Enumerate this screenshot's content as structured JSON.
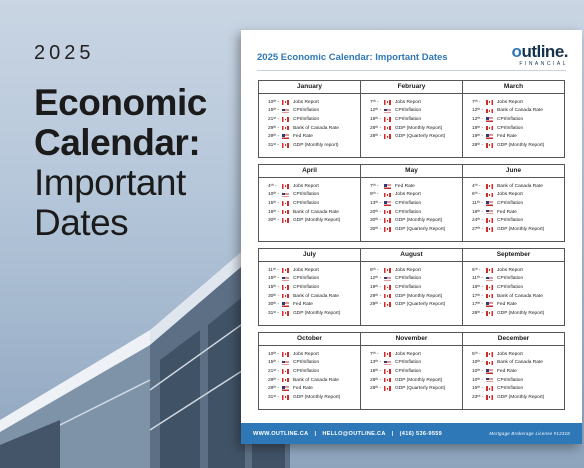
{
  "hero": {
    "year": "2025",
    "line1": "Economic",
    "line2": "Calendar:",
    "line3": "Important",
    "line4": "Dates"
  },
  "doc": {
    "title": "2025 Economic Calendar: Important Dates",
    "logo": {
      "main_prefix": "",
      "main_o": "o",
      "main_rest": "utline.",
      "sub": "FINANCIAL"
    }
  },
  "months": [
    {
      "name": "January",
      "events": [
        {
          "date": "10ᵗʰ -",
          "flag": "ca",
          "label": "Jobs Report"
        },
        {
          "date": "15ᵗʰ -",
          "flag": "us",
          "label": "CPI/Inflation"
        },
        {
          "date": "21ˢᵗ -",
          "flag": "ca",
          "label": "CPI/Inflation"
        },
        {
          "date": "29ᵗʰ -",
          "flag": "ca",
          "label": "Bank of Canada Rate"
        },
        {
          "date": "29ᵗʰ -",
          "flag": "us",
          "label": "Fed Rate"
        },
        {
          "date": "31ˢᵗ -",
          "flag": "ca",
          "label": "GDP (Monthly report)"
        }
      ]
    },
    {
      "name": "February",
      "events": [
        {
          "date": "7ᵗʰ -",
          "flag": "ca",
          "label": "Jobs Report"
        },
        {
          "date": "12ᵗʰ -",
          "flag": "us",
          "label": "CPI/Inflation"
        },
        {
          "date": "18ᵗʰ -",
          "flag": "ca",
          "label": "CPI/Inflation"
        },
        {
          "date": "28ᵗʰ -",
          "flag": "ca",
          "label": "GDP (Monthly Report)"
        },
        {
          "date": "28ᵗʰ -",
          "flag": "ca",
          "label": "GDP (Quarterly Report)"
        }
      ]
    },
    {
      "name": "March",
      "events": [
        {
          "date": "7ᵗʰ -",
          "flag": "ca",
          "label": "Jobs Report"
        },
        {
          "date": "12ᵗʰ -",
          "flag": "ca",
          "label": "Bank of Canada Rate"
        },
        {
          "date": "12ᵗʰ -",
          "flag": "us",
          "label": "CPI/Inflation"
        },
        {
          "date": "18ᵗʰ -",
          "flag": "ca",
          "label": "CPI/Inflation"
        },
        {
          "date": "19ᵗʰ -",
          "flag": "us",
          "label": "Fed Rate"
        },
        {
          "date": "28ᵗʰ -",
          "flag": "ca",
          "label": "GDP (Monthly Report)"
        }
      ]
    },
    {
      "name": "April",
      "events": [
        {
          "date": "4ᵗʰ -",
          "flag": "ca",
          "label": "Jobs Report"
        },
        {
          "date": "10ᵗʰ -",
          "flag": "us",
          "label": "CPI/Inflation"
        },
        {
          "date": "15ᵗʰ -",
          "flag": "ca",
          "label": "CPI/Inflation"
        },
        {
          "date": "16ᵗʰ -",
          "flag": "ca",
          "label": "Bank of Canada Rate"
        },
        {
          "date": "30ᵗʰ -",
          "flag": "ca",
          "label": "GDP (Monthly Report)"
        }
      ]
    },
    {
      "name": "May",
      "events": [
        {
          "date": "7ᵗʰ -",
          "flag": "us",
          "label": "Fed Rate"
        },
        {
          "date": "9ᵗʰ -",
          "flag": "ca",
          "label": "Jobs Report"
        },
        {
          "date": "13ᵗʰ -",
          "flag": "us",
          "label": "CPI/Inflation"
        },
        {
          "date": "20ᵗʰ -",
          "flag": "ca",
          "label": "CPI/Inflation"
        },
        {
          "date": "30ᵗʰ -",
          "flag": "ca",
          "label": "GDP (Monthly Report)"
        },
        {
          "date": "30ᵗʰ -",
          "flag": "ca",
          "label": "GDP (Quarterly Report)"
        }
      ]
    },
    {
      "name": "June",
      "events": [
        {
          "date": "4ᵗʰ -",
          "flag": "ca",
          "label": "Bank of Canada Rate"
        },
        {
          "date": "6ᵗʰ -",
          "flag": "ca",
          "label": "Jobs Report"
        },
        {
          "date": "11ᵗʰ -",
          "flag": "us",
          "label": "CPI/Inflation"
        },
        {
          "date": "18ᵗʰ -",
          "flag": "us",
          "label": "Fed Rate"
        },
        {
          "date": "24ᵗʰ -",
          "flag": "ca",
          "label": "CPI/Inflation"
        },
        {
          "date": "27ᵗʰ -",
          "flag": "ca",
          "label": "GDP (Monthly Report)"
        }
      ]
    },
    {
      "name": "July",
      "events": [
        {
          "date": "11ᵗʰ -",
          "flag": "ca",
          "label": "Jobs Report"
        },
        {
          "date": "15ᵗʰ -",
          "flag": "us",
          "label": "CPI/Inflation"
        },
        {
          "date": "15ᵗʰ -",
          "flag": "ca",
          "label": "CPI/Inflation"
        },
        {
          "date": "30ᵗʰ -",
          "flag": "ca",
          "label": "Bank of Canada Rate"
        },
        {
          "date": "30ᵗʰ -",
          "flag": "us",
          "label": "Fed Rate"
        },
        {
          "date": "31ˢᵗ -",
          "flag": "ca",
          "label": "GDP (Monthly Report)"
        }
      ]
    },
    {
      "name": "August",
      "events": [
        {
          "date": "8ᵗʰ -",
          "flag": "ca",
          "label": "Jobs Report"
        },
        {
          "date": "12ᵗʰ -",
          "flag": "us",
          "label": "CPI/Inflation"
        },
        {
          "date": "19ᵗʰ -",
          "flag": "ca",
          "label": "CPI/Inflation"
        },
        {
          "date": "29ᵗʰ -",
          "flag": "ca",
          "label": "GDP (Monthly Report)"
        },
        {
          "date": "29ᵗʰ -",
          "flag": "ca",
          "label": "GDP (Quarterly Report)"
        }
      ]
    },
    {
      "name": "September",
      "events": [
        {
          "date": "5ᵗʰ -",
          "flag": "ca",
          "label": "Jobs Report"
        },
        {
          "date": "11ᵗʰ -",
          "flag": "us",
          "label": "CPI/Inflation"
        },
        {
          "date": "16ᵗʰ -",
          "flag": "ca",
          "label": "CPI/Inflation"
        },
        {
          "date": "17ᵗʰ -",
          "flag": "ca",
          "label": "Bank of Canada Rate"
        },
        {
          "date": "17ᵗʰ -",
          "flag": "us",
          "label": "Fed Rate"
        },
        {
          "date": "26ᵗʰ -",
          "flag": "ca",
          "label": "GDP (Monthly Report)"
        }
      ]
    },
    {
      "name": "October",
      "events": [
        {
          "date": "10ᵗʰ -",
          "flag": "ca",
          "label": "Jobs Report"
        },
        {
          "date": "15ᵗʰ -",
          "flag": "us",
          "label": "CPI/Inflation"
        },
        {
          "date": "21ˢᵗ -",
          "flag": "ca",
          "label": "CPI/Inflation"
        },
        {
          "date": "29ᵗʰ -",
          "flag": "ca",
          "label": "Bank of Canada Rate"
        },
        {
          "date": "29ᵗʰ -",
          "flag": "us",
          "label": "Fed Rate"
        },
        {
          "date": "31ˢᵗ -",
          "flag": "ca",
          "label": "GDP (Monthly Report)"
        }
      ]
    },
    {
      "name": "November",
      "events": [
        {
          "date": "7ᵗʰ -",
          "flag": "ca",
          "label": "Jobs Report"
        },
        {
          "date": "13ᵗʰ -",
          "flag": "us",
          "label": "CPI/Inflation"
        },
        {
          "date": "18ᵗʰ -",
          "flag": "ca",
          "label": "CPI/Inflation"
        },
        {
          "date": "28ᵗʰ -",
          "flag": "ca",
          "label": "GDP (Monthly Report)"
        },
        {
          "date": "28ᵗʰ -",
          "flag": "ca",
          "label": "GDP (Quarterly Report)"
        }
      ]
    },
    {
      "name": "December",
      "events": [
        {
          "date": "5ᵗʰ -",
          "flag": "ca",
          "label": "Jobs Report"
        },
        {
          "date": "10ᵗʰ -",
          "flag": "ca",
          "label": "Bank of Canada Rate"
        },
        {
          "date": "10ᵗʰ -",
          "flag": "us",
          "label": "Fed Rate"
        },
        {
          "date": "10ᵗʰ -",
          "flag": "us",
          "label": "CPI/Inflation"
        },
        {
          "date": "15ᵗʰ -",
          "flag": "ca",
          "label": "CPI/Inflation"
        },
        {
          "date": "23ʳᵈ -",
          "flag": "ca",
          "label": "GDP (Monthly Report)"
        }
      ]
    }
  ],
  "footer": {
    "website": "WWW.OUTLINE.CA",
    "email": "HELLO@OUTLINE.CA",
    "phone": "(416) 536-9559",
    "license": "Mortgage Brokerage License #12318",
    "divider": "|"
  },
  "colors": {
    "accent": "#2f78b7",
    "navy": "#17324d",
    "canada_red": "#d42a2a"
  }
}
